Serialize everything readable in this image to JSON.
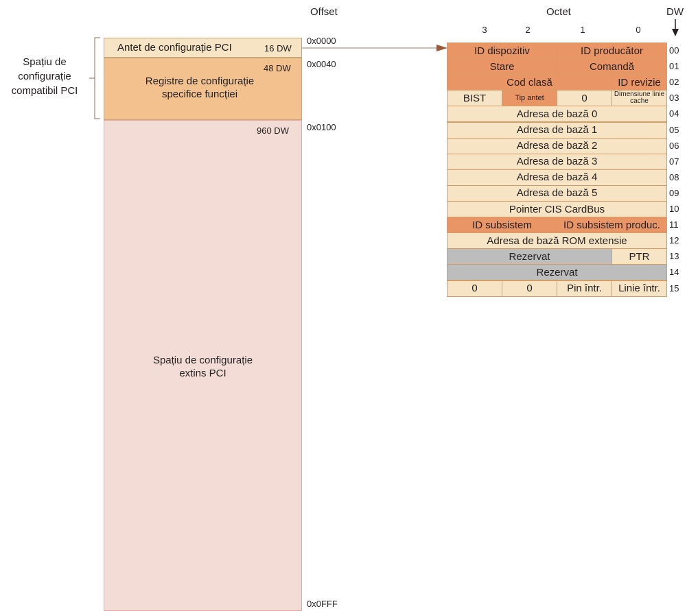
{
  "headers": {
    "offset": "Offset",
    "octet": "Octet",
    "dw": "DW"
  },
  "octet_numbers": [
    "3",
    "2",
    "1",
    "0"
  ],
  "bracket_label": "Spațiu de\nconfigurație\ncompatibil PCI",
  "left": {
    "header_block": {
      "label": "Antet de configurație PCI",
      "size": "16 DW",
      "offset": "0x0000"
    },
    "func_block": {
      "label": "Registre de configurație\nspecifice funcției",
      "size": "48 DW",
      "offset": "0x0040"
    },
    "ext_block": {
      "label": "Spațiu de configurație\nextins PCI",
      "size": "960 DW",
      "offset": "0x0100",
      "end_offset": "0x0FFF"
    }
  },
  "table": {
    "rows": [
      {
        "dw": "00",
        "cells": [
          {
            "text": "ID dispozitiv",
            "span": 2,
            "color": "orange"
          },
          {
            "text": "ID producător",
            "span": 2,
            "color": "orange"
          }
        ]
      },
      {
        "dw": "01",
        "cells": [
          {
            "text": "Stare",
            "span": 2,
            "color": "orange"
          },
          {
            "text": "Comandă",
            "span": 2,
            "color": "orange"
          }
        ]
      },
      {
        "dw": "02",
        "cells": [
          {
            "text": "Cod clasă",
            "span": 3,
            "color": "orange"
          },
          {
            "text": "ID revizie",
            "span": 1,
            "color": "orange"
          }
        ]
      },
      {
        "dw": "03",
        "cells": [
          {
            "text": "BIST",
            "span": 1,
            "color": "light"
          },
          {
            "text": "Tip antet",
            "span": 1,
            "color": "orange"
          },
          {
            "text": "0",
            "span": 1,
            "color": "light"
          },
          {
            "text": "Dimensiune linie cache",
            "span": 1,
            "color": "light"
          }
        ]
      },
      {
        "dw": "04",
        "cells": [
          {
            "text": "Adresa de bază 0",
            "span": 4,
            "color": "light"
          }
        ]
      },
      {
        "dw": "05",
        "cells": [
          {
            "text": "Adresa de bază 1",
            "span": 4,
            "color": "light"
          }
        ]
      },
      {
        "dw": "06",
        "cells": [
          {
            "text": "Adresa de bază 2",
            "span": 4,
            "color": "light"
          }
        ]
      },
      {
        "dw": "07",
        "cells": [
          {
            "text": "Adresa de bază 3",
            "span": 4,
            "color": "light"
          }
        ]
      },
      {
        "dw": "08",
        "cells": [
          {
            "text": "Adresa de bază 4",
            "span": 4,
            "color": "light"
          }
        ]
      },
      {
        "dw": "09",
        "cells": [
          {
            "text": "Adresa de bază 5",
            "span": 4,
            "color": "light"
          }
        ]
      },
      {
        "dw": "10",
        "cells": [
          {
            "text": "Pointer CIS CardBus",
            "span": 4,
            "color": "light"
          }
        ]
      },
      {
        "dw": "11",
        "cells": [
          {
            "text": "ID subsistem",
            "span": 2,
            "color": "orange"
          },
          {
            "text": "ID subsistem produc.",
            "span": 2,
            "color": "orange"
          }
        ]
      },
      {
        "dw": "12",
        "cells": [
          {
            "text": "Adresa de bază ROM extensie",
            "span": 4,
            "color": "light"
          }
        ]
      },
      {
        "dw": "13",
        "cells": [
          {
            "text": "Rezervat",
            "span": 3,
            "color": "gray"
          },
          {
            "text": "PTR",
            "span": 1,
            "color": "light"
          }
        ]
      },
      {
        "dw": "14",
        "cells": [
          {
            "text": "Rezervat",
            "span": 4,
            "color": "gray"
          }
        ]
      },
      {
        "dw": "15",
        "cells": [
          {
            "text": "0",
            "span": 1,
            "color": "light"
          },
          {
            "text": "0",
            "span": 1,
            "color": "light"
          },
          {
            "text": "Pin într.",
            "span": 1,
            "color": "light"
          },
          {
            "text": "Linie într.",
            "span": 1,
            "color": "light"
          }
        ]
      }
    ]
  },
  "colors": {
    "orange": "#ea9566",
    "light": "#f6e4c4",
    "gray": "#bdbdbd",
    "func": "#f3c18e",
    "extended": "#f4dcd6",
    "arrow": "#9a5a3a"
  }
}
